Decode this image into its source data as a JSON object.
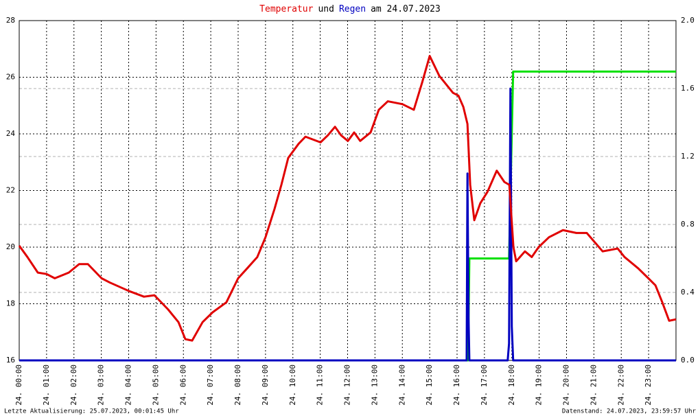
{
  "chart_data": {
    "type": "line",
    "title_parts": [
      {
        "text": "Temperatur",
        "color": "#e00000"
      },
      {
        "text": "und",
        "color": "#000000"
      },
      {
        "text": "Regen",
        "color": "#0000c0"
      },
      {
        "text": "am 24.07.2023",
        "color": "#000000"
      }
    ],
    "footer_left": "Letzte Aktualisierung: 25.07.2023, 00:01:45 Uhr",
    "footer_right": "Datenstand: 24.07.2023, 23:59:57 Uhr",
    "xlim": [
      0,
      24
    ],
    "xticks": [
      {
        "value": 0,
        "label": "24. 00:00"
      },
      {
        "value": 1,
        "label": "24. 01:00"
      },
      {
        "value": 2,
        "label": "24. 02:00"
      },
      {
        "value": 3,
        "label": "24. 03:00"
      },
      {
        "value": 4,
        "label": "24. 04:00"
      },
      {
        "value": 5,
        "label": "24. 05:00"
      },
      {
        "value": 6,
        "label": "24. 06:00"
      },
      {
        "value": 7,
        "label": "24. 07:00"
      },
      {
        "value": 8,
        "label": "24. 08:00"
      },
      {
        "value": 9,
        "label": "24. 09:00"
      },
      {
        "value": 10,
        "label": "24. 10:00"
      },
      {
        "value": 11,
        "label": "24. 11:00"
      },
      {
        "value": 12,
        "label": "24. 12:00"
      },
      {
        "value": 13,
        "label": "24. 13:00"
      },
      {
        "value": 14,
        "label": "24. 14:00"
      },
      {
        "value": 15,
        "label": "24. 15:00"
      },
      {
        "value": 16,
        "label": "24. 16:00"
      },
      {
        "value": 17,
        "label": "24. 17:00"
      },
      {
        "value": 18,
        "label": "24. 18:00"
      },
      {
        "value": 19,
        "label": "24. 19:00"
      },
      {
        "value": 20,
        "label": "24. 20:00"
      },
      {
        "value": 21,
        "label": "24. 21:00"
      },
      {
        "value": 22,
        "label": "24. 22:00"
      },
      {
        "value": 23,
        "label": "24. 23:00"
      }
    ],
    "ylim": [
      16,
      28
    ],
    "yticks": [
      16,
      18,
      20,
      22,
      24,
      26,
      28
    ],
    "y2lim": [
      0,
      2
    ],
    "y2ticks": [
      {
        "value": 0,
        "label": "0.0"
      },
      {
        "value": 0.4,
        "label": "0.4"
      },
      {
        "value": 0.8,
        "label": "0.8"
      },
      {
        "value": 1.2,
        "label": "1.2"
      },
      {
        "value": 1.6,
        "label": "1.6"
      },
      {
        "value": 2,
        "label": "2.0"
      }
    ],
    "grid": true,
    "series": [
      {
        "color": "#00e000",
        "axis": "y2",
        "x": [
          0,
          16.4,
          16.45,
          17.9,
          18.05,
          24
        ],
        "values": [
          0,
          0,
          0.6,
          0.6,
          1.7,
          1.7
        ]
      },
      {
        "color": "#0000c0",
        "axis": "y2",
        "x": [
          0,
          16.35,
          16.38,
          16.42,
          16.45,
          17.85,
          17.9,
          17.95,
          18.0,
          18.05,
          24
        ],
        "values": [
          0,
          0,
          1.1,
          0.25,
          0,
          0,
          0.1,
          1.6,
          0.2,
          0,
          0
        ]
      },
      {
        "color": "#e00000",
        "x": [
          0,
          0.3,
          0.68,
          1.0,
          1.3,
          1.81,
          2.19,
          2.51,
          3.01,
          3.31,
          4.01,
          4.56,
          4.94,
          5.44,
          5.82,
          6.07,
          6.32,
          6.7,
          7.07,
          7.57,
          8.0,
          8.33,
          8.7,
          9.0,
          9.33,
          9.58,
          9.83,
          10.21,
          10.46,
          11.01,
          11.28,
          11.54,
          11.76,
          12.01,
          12.24,
          12.46,
          12.84,
          13.14,
          13.47,
          14.0,
          14.42,
          14.72,
          15.0,
          15.35,
          15.85,
          16.05,
          16.23,
          16.38,
          16.48,
          16.63,
          16.85,
          17.11,
          17.45,
          17.73,
          17.91,
          18.06,
          18.16,
          18.48,
          18.73,
          18.98,
          19.36,
          19.87,
          20.36,
          20.74,
          21.32,
          21.87,
          22.12,
          22.62,
          22.99,
          23.25,
          23.5,
          23.75,
          24.0
        ],
        "values": [
          20.05,
          19.65,
          19.1,
          19.05,
          18.9,
          19.1,
          19.4,
          19.4,
          18.9,
          18.75,
          18.45,
          18.25,
          18.3,
          17.8,
          17.35,
          16.75,
          16.7,
          17.35,
          17.7,
          18.05,
          18.9,
          19.25,
          19.65,
          20.35,
          21.35,
          22.2,
          23.15,
          23.65,
          23.9,
          23.7,
          23.95,
          24.25,
          23.95,
          23.75,
          24.05,
          23.75,
          24.05,
          24.85,
          25.15,
          25.05,
          24.85,
          25.8,
          26.75,
          26.05,
          25.45,
          25.35,
          24.95,
          24.35,
          22.2,
          20.95,
          21.55,
          21.95,
          22.7,
          22.3,
          22.2,
          20.0,
          19.5,
          19.85,
          19.65,
          20.0,
          20.35,
          20.6,
          20.5,
          20.5,
          19.85,
          19.95,
          19.65,
          19.25,
          18.9,
          18.65,
          18.05,
          17.4,
          17.45
        ]
      }
    ]
  }
}
